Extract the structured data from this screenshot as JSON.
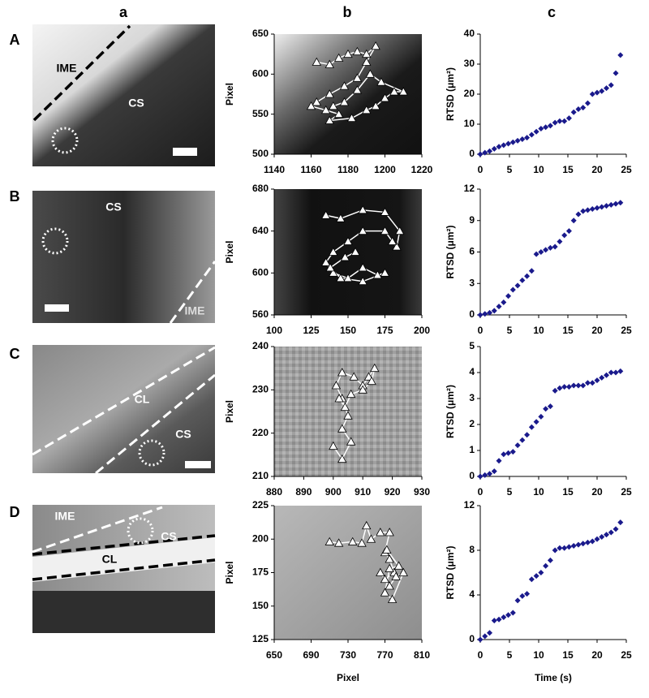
{
  "column_labels": [
    "a",
    "b",
    "c"
  ],
  "row_labels": [
    "A",
    "B",
    "C",
    "D"
  ],
  "images": [
    {
      "labels": [
        "IME",
        "CS"
      ]
    },
    {
      "labels": [
        "CS",
        "IME"
      ]
    },
    {
      "labels": [
        "CL",
        "CS"
      ]
    },
    {
      "labels": [
        "IME",
        "CS",
        "CL"
      ]
    }
  ],
  "chart_data": [
    {
      "type": "line",
      "marker": "triangle",
      "color": "#ffffff",
      "ylabel": "Pixel",
      "xlim": [
        1140,
        1220
      ],
      "xticks": [
        1140,
        1160,
        1180,
        1200,
        1220
      ],
      "ylim": [
        500,
        650
      ],
      "yticks": [
        500,
        550,
        600,
        650
      ],
      "x": [
        1163,
        1170,
        1175,
        1180,
        1185,
        1190,
        1195,
        1190,
        1185,
        1178,
        1170,
        1163,
        1160,
        1168,
        1175,
        1170,
        1182,
        1190,
        1195,
        1200,
        1205,
        1210,
        1198,
        1192,
        1185,
        1178,
        1172
      ],
      "values": [
        615,
        612,
        620,
        625,
        628,
        625,
        635,
        615,
        595,
        585,
        575,
        565,
        560,
        555,
        550,
        542,
        545,
        555,
        560,
        570,
        578,
        578,
        590,
        600,
        580,
        565,
        560
      ]
    },
    {
      "type": "scatter",
      "color": "#1a1a8c",
      "ylabel": "RTSD (μm²)",
      "xlim": [
        0,
        25
      ],
      "xticks": [
        0,
        5,
        10,
        15,
        20,
        25
      ],
      "ylim": [
        0,
        40
      ],
      "yticks": [
        0,
        10,
        20,
        30,
        40
      ],
      "x": [
        0,
        0.8,
        1.6,
        2.4,
        3.2,
        4,
        4.8,
        5.6,
        6.4,
        7.2,
        8,
        8.8,
        9.6,
        10.4,
        11.2,
        12,
        12.8,
        13.6,
        14.4,
        15.2,
        16,
        16.8,
        17.6,
        18.4,
        19.2,
        20,
        20.8,
        21.6,
        22.4,
        23.2,
        24
      ],
      "values": [
        0,
        0.5,
        1,
        1.8,
        2.5,
        3,
        3.5,
        4,
        4.5,
        5,
        5.5,
        6.5,
        7.5,
        8.5,
        9,
        9.5,
        10.5,
        11,
        11,
        12,
        14,
        15,
        15.5,
        17,
        20,
        20.5,
        21,
        22,
        23,
        27,
        33
      ]
    },
    {
      "type": "line",
      "marker": "triangle",
      "color": "#ffffff",
      "ylabel": "Pixel",
      "xlim": [
        100,
        200
      ],
      "xticks": [
        100,
        125,
        150,
        175,
        200
      ],
      "ylim": [
        560,
        680
      ],
      "yticks": [
        560,
        600,
        640,
        680
      ],
      "x": [
        135,
        145,
        160,
        175,
        185,
        183,
        180,
        175,
        160,
        150,
        140,
        135,
        140,
        150,
        160,
        170,
        175,
        160,
        145,
        138,
        148,
        155
      ],
      "values": [
        655,
        652,
        660,
        658,
        640,
        625,
        630,
        640,
        640,
        630,
        620,
        610,
        600,
        595,
        605,
        598,
        600,
        592,
        595,
        605,
        615,
        620
      ]
    },
    {
      "type": "scatter",
      "color": "#1a1a8c",
      "ylabel": "RTSD (μm²)",
      "xlim": [
        0,
        25
      ],
      "xticks": [
        0,
        5,
        10,
        15,
        20,
        25
      ],
      "ylim": [
        0,
        12
      ],
      "yticks": [
        0,
        3,
        6,
        9,
        12
      ],
      "x": [
        0,
        0.8,
        1.6,
        2.4,
        3.2,
        4,
        4.8,
        5.6,
        6.4,
        7.2,
        8,
        8.8,
        9.6,
        10.4,
        11.2,
        12,
        12.8,
        13.6,
        14.4,
        15.2,
        16,
        16.8,
        17.6,
        18.4,
        19.2,
        20,
        20.8,
        21.6,
        22.4,
        23.2,
        24
      ],
      "values": [
        0,
        0.1,
        0.2,
        0.4,
        0.8,
        1.2,
        1.8,
        2.4,
        2.8,
        3.3,
        3.7,
        4.2,
        5.8,
        6,
        6.2,
        6.4,
        6.5,
        7,
        7.6,
        8,
        9,
        9.6,
        9.9,
        10,
        10.1,
        10.2,
        10.3,
        10.4,
        10.5,
        10.6,
        10.7
      ]
    },
    {
      "type": "line",
      "marker": "triangle",
      "color": "#ffffff",
      "ylabel": "Pixel",
      "xlim": [
        880,
        930
      ],
      "xticks": [
        880,
        890,
        900,
        910,
        920,
        930
      ],
      "ylim": [
        210,
        240
      ],
      "yticks": [
        210,
        220,
        230,
        240
      ],
      "x": [
        900,
        903,
        906,
        903,
        905,
        903,
        901,
        903,
        907,
        910,
        912,
        914,
        913,
        910,
        906,
        904,
        902
      ],
      "values": [
        217,
        214,
        218,
        221,
        224,
        228,
        231,
        234,
        233,
        231,
        233,
        235,
        232,
        230,
        229,
        226,
        228
      ]
    },
    {
      "type": "scatter",
      "color": "#1a1a8c",
      "ylabel": "RTSD (μm²)",
      "xlim": [
        0,
        25
      ],
      "xticks": [
        0,
        5,
        10,
        15,
        20,
        25
      ],
      "ylim": [
        0,
        5
      ],
      "yticks": [
        0,
        1,
        2,
        3,
        4,
        5
      ],
      "x": [
        0,
        0.8,
        1.6,
        2.4,
        3.2,
        4,
        4.8,
        5.6,
        6.4,
        7.2,
        8,
        8.8,
        9.6,
        10.4,
        11.2,
        12,
        12.8,
        13.6,
        14.4,
        15.2,
        16,
        16.8,
        17.6,
        18.4,
        19.2,
        20,
        20.8,
        21.6,
        22.4,
        23.2,
        24
      ],
      "values": [
        0,
        0.05,
        0.1,
        0.2,
        0.6,
        0.85,
        0.9,
        0.95,
        1.2,
        1.4,
        1.6,
        1.9,
        2.1,
        2.3,
        2.6,
        2.7,
        3.3,
        3.4,
        3.45,
        3.45,
        3.5,
        3.5,
        3.5,
        3.6,
        3.6,
        3.7,
        3.8,
        3.9,
        4,
        4,
        4.05
      ]
    },
    {
      "type": "line",
      "marker": "triangle",
      "color": "#ffffff",
      "ylabel": "Pixel",
      "xlabel": "Pixel",
      "xlim": [
        650,
        810
      ],
      "xticks": [
        650,
        690,
        730,
        770,
        810
      ],
      "ylim": [
        125,
        225
      ],
      "yticks": [
        125,
        150,
        175,
        200,
        225
      ],
      "x": [
        710,
        720,
        735,
        745,
        750,
        755,
        765,
        775,
        770,
        775,
        780,
        770,
        765,
        775,
        782,
        790,
        778,
        770,
        775,
        785,
        772
      ],
      "values": [
        198,
        197,
        198,
        197,
        210,
        200,
        205,
        205,
        190,
        185,
        175,
        170,
        175,
        165,
        172,
        175,
        155,
        160,
        178,
        180,
        192
      ]
    },
    {
      "type": "scatter",
      "color": "#1a1a8c",
      "ylabel": "RTSD (μm²)",
      "xlabel": "Time (s)",
      "xlim": [
        0,
        25
      ],
      "xticks": [
        0,
        5,
        10,
        15,
        20,
        25
      ],
      "ylim": [
        0,
        12
      ],
      "yticks": [
        0,
        4,
        8,
        12
      ],
      "x": [
        0,
        0.8,
        1.6,
        2.4,
        3.2,
        4,
        4.8,
        5.6,
        6.4,
        7.2,
        8,
        8.8,
        9.6,
        10.4,
        11.2,
        12,
        12.8,
        13.6,
        14.4,
        15.2,
        16,
        16.8,
        17.6,
        18.4,
        19.2,
        20,
        20.8,
        21.6,
        22.4,
        23.2,
        24
      ],
      "values": [
        0,
        0.3,
        0.6,
        1.7,
        1.8,
        2,
        2.2,
        2.4,
        3.5,
        3.9,
        4.1,
        5.4,
        5.7,
        6,
        6.6,
        7.1,
        8,
        8.2,
        8.2,
        8.3,
        8.4,
        8.5,
        8.6,
        8.7,
        8.8,
        9,
        9.2,
        9.4,
        9.6,
        9.9,
        10.5
      ]
    }
  ]
}
